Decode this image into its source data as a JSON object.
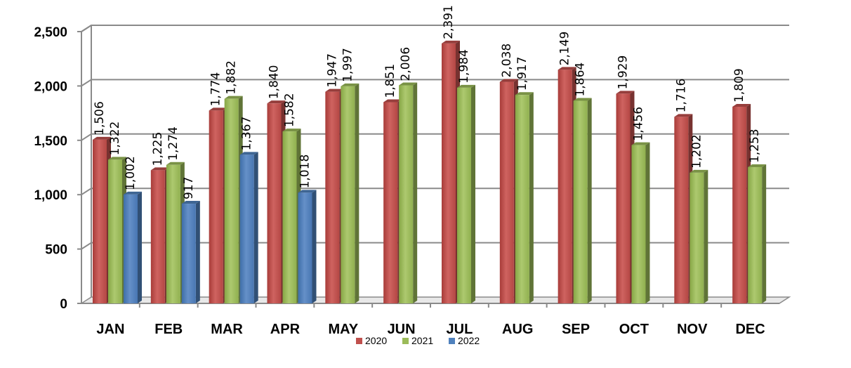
{
  "chart_data": {
    "type": "bar",
    "title": "",
    "xlabel": "",
    "ylabel": "",
    "ylim": [
      0,
      2500
    ],
    "yticks": [
      0,
      500,
      1000,
      1500,
      2000,
      2500
    ],
    "ytick_labels": [
      "0",
      "500",
      "1,000",
      "1,500",
      "2,000",
      "2,500"
    ],
    "grid": true,
    "legend_position": "bottom-center",
    "categories": [
      "JAN",
      "FEB",
      "MAR",
      "APR",
      "MAY",
      "JUN",
      "JUL",
      "AUG",
      "SEP",
      "OCT",
      "NOV",
      "DEC"
    ],
    "series": [
      {
        "name": "2020",
        "color": "#C0504D",
        "values": [
          1506,
          1225,
          1774,
          1840,
          1947,
          1851,
          2391,
          2038,
          2149,
          1929,
          1716,
          1809
        ],
        "labels": [
          "1,506",
          "1,225",
          "1,774",
          "1,840",
          "1,947",
          "1,851",
          "2,391",
          "2,038",
          "2,149",
          "1,929",
          "1,716",
          "1,809"
        ]
      },
      {
        "name": "2021",
        "color": "#9BBB59",
        "values": [
          1322,
          1274,
          1882,
          1582,
          1997,
          2006,
          1984,
          1917,
          1864,
          1456,
          1202,
          1253
        ],
        "labels": [
          "1,322",
          "1,274",
          "1,882",
          "1,582",
          "1,997",
          "2,006",
          "1,984",
          "1,917",
          "1,864",
          "1,456",
          "1,202",
          "1,253"
        ]
      },
      {
        "name": "2022",
        "color": "#4F81BD",
        "values": [
          1002,
          917,
          1367,
          1018,
          null,
          null,
          null,
          null,
          null,
          null,
          null,
          null
        ],
        "labels": [
          "1,002",
          "917",
          "1,367",
          "1,018",
          null,
          null,
          null,
          null,
          null,
          null,
          null,
          null
        ]
      }
    ]
  }
}
